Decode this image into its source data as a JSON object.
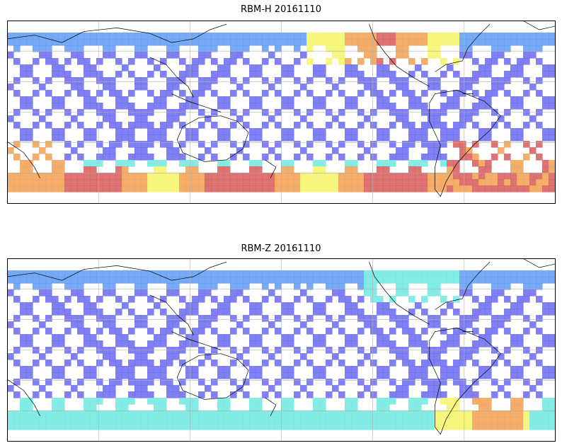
{
  "figure": {
    "panels": [
      {
        "title": "RBM-H 20161110",
        "variant": "H"
      },
      {
        "title": "RBM-Z 20161110",
        "variant": "Z"
      }
    ],
    "colors": {
      "frame": "#000000",
      "grid": "#b0b0b0",
      "coast": "#000000",
      "low": "#6a6af0",
      "low_mid": "#5f9bf5",
      "mid": "#6fe8e0",
      "high_mid": "#f5f56a",
      "high": "#f0a050",
      "max": "#d85a5a"
    },
    "projection": "cylindrical",
    "grid_lines": "on"
  }
}
